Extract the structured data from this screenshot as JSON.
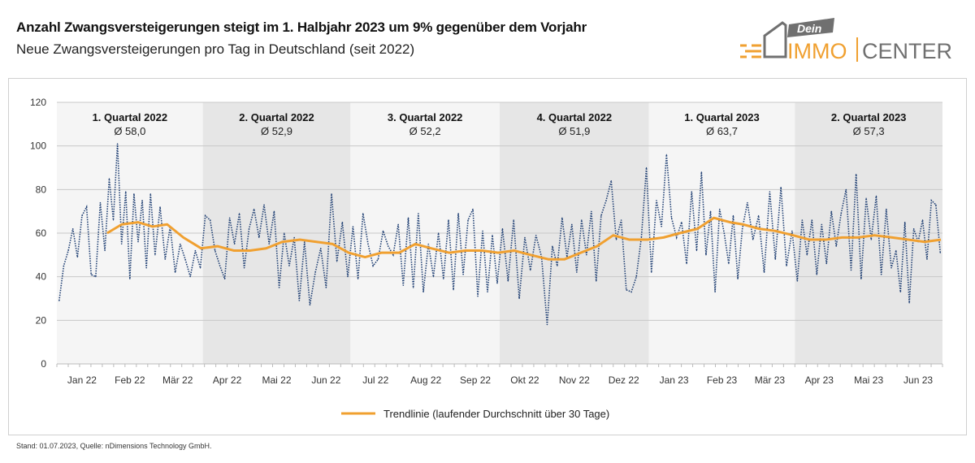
{
  "header": {
    "title": "Anzahl Zwangsversteigerungen steigt im 1. Halbjahr 2023 um 9% gegenüber dem Vorjahr",
    "subtitle": "Neue Zwangsversteigerungen pro Tag in Deutschland (seit 2022)"
  },
  "logo": {
    "tag": "Dein",
    "brand_a": "IMMO",
    "brand_b": "CENTER",
    "colors": {
      "orange": "#f0a030",
      "gray": "#707070"
    }
  },
  "footer": "Stand: 01.07.2023, Quelle: nDimensions Technology GmbH.",
  "chart_data": {
    "type": "line",
    "title": "",
    "xlabel": "",
    "ylabel": "",
    "ylim": [
      0,
      120
    ],
    "yticks": [
      0,
      20,
      40,
      60,
      80,
      100,
      120
    ],
    "grid": true,
    "x_range": [
      "2022-01-01",
      "2023-06-30"
    ],
    "month_labels": [
      {
        "month": "2022-01",
        "label": "Jan 22"
      },
      {
        "month": "2022-02",
        "label": "Feb 22"
      },
      {
        "month": "2022-03",
        "label": "Mär 22"
      },
      {
        "month": "2022-04",
        "label": "Apr 22"
      },
      {
        "month": "2022-05",
        "label": "Mai 22"
      },
      {
        "month": "2022-06",
        "label": "Jun 22"
      },
      {
        "month": "2022-07",
        "label": "Jul 22"
      },
      {
        "month": "2022-08",
        "label": "Aug 22"
      },
      {
        "month": "2022-09",
        "label": "Sep 22"
      },
      {
        "month": "2022-10",
        "label": "Okt 22"
      },
      {
        "month": "2022-11",
        "label": "Nov 22"
      },
      {
        "month": "2022-12",
        "label": "Dez 22"
      },
      {
        "month": "2023-01",
        "label": "Jan 23"
      },
      {
        "month": "2023-02",
        "label": "Feb 23"
      },
      {
        "month": "2023-03",
        "label": "Mär 23"
      },
      {
        "month": "2023-04",
        "label": "Apr 23"
      },
      {
        "month": "2023-05",
        "label": "Mai 23"
      },
      {
        "month": "2023-06",
        "label": "Jun 23"
      }
    ],
    "quarters": [
      {
        "label": "1. Quartal 2022",
        "avg": "Ø 58,0",
        "start": "2022-01-01",
        "end": "2022-03-31",
        "shade": "light"
      },
      {
        "label": "2. Quartal 2022",
        "avg": "Ø 52,9",
        "start": "2022-04-01",
        "end": "2022-06-30",
        "shade": "dark"
      },
      {
        "label": "3. Quartal 2022",
        "avg": "Ø 52,2",
        "start": "2022-07-01",
        "end": "2022-09-30",
        "shade": "light"
      },
      {
        "label": "4. Quartal 2022",
        "avg": "Ø 51,9",
        "start": "2022-10-01",
        "end": "2022-12-31",
        "shade": "dark"
      },
      {
        "label": "1. Quartal 2023",
        "avg": "Ø 63,7",
        "start": "2023-01-01",
        "end": "2023-03-31",
        "shade": "light"
      },
      {
        "label": "2. Quartal 2023",
        "avg": "Ø 57,3",
        "start": "2023-04-01",
        "end": "2023-06-30",
        "shade": "dark"
      }
    ],
    "colors": {
      "daily": "#1f3f73",
      "trend": "#f0a030",
      "band_light": "#f5f5f5",
      "band_dark": "#e6e6e6",
      "grid": "#c8c8c8"
    },
    "series": [
      {
        "style": "dotted",
        "daily_by_month": [
          {
            "month": "2022-01",
            "values": [
              29,
              45,
              52,
              62,
              49,
              68,
              72,
              41,
              40,
              74,
              52
            ]
          },
          {
            "month": "2022-02",
            "values": [
              85,
              66,
              101,
              55,
              79,
              39,
              78,
              56,
              75,
              44,
              78
            ]
          },
          {
            "month": "2022-03",
            "values": [
              50,
              72,
              48,
              63,
              42,
              55,
              48,
              40,
              52,
              44
            ]
          },
          {
            "month": "2022-04",
            "values": [
              68,
              66,
              52,
              45,
              39,
              67,
              55,
              69,
              44,
              62
            ]
          },
          {
            "month": "2022-05",
            "values": [
              71,
              58,
              73,
              55,
              70,
              35,
              60,
              45,
              58,
              29
            ]
          },
          {
            "month": "2022-06",
            "values": [
              56,
              27,
              42,
              53,
              35,
              78,
              47,
              65,
              40
            ]
          },
          {
            "month": "2022-07",
            "values": [
              63,
              39,
              69,
              55,
              45,
              48,
              61,
              54,
              50,
              64
            ]
          },
          {
            "month": "2022-08",
            "values": [
              36,
              67,
              35,
              69,
              33,
              55,
              40,
              60,
              39,
              66
            ]
          },
          {
            "month": "2022-09",
            "values": [
              34,
              69,
              41,
              66,
              71,
              31,
              61,
              33,
              59,
              37
            ]
          },
          {
            "month": "2022-10",
            "values": [
              62,
              38,
              66,
              30,
              58,
              43,
              59,
              49,
              18
            ]
          },
          {
            "month": "2022-11",
            "values": [
              54,
              45,
              67,
              49,
              64,
              42,
              66,
              50,
              70,
              38
            ]
          },
          {
            "month": "2022-12",
            "values": [
              68,
              75,
              84,
              57,
              66,
              34,
              33,
              40,
              58,
              90
            ]
          },
          {
            "month": "2023-01",
            "values": [
              42,
              75,
              63,
              96,
              67,
              58,
              65,
              46,
              79,
              52
            ]
          },
          {
            "month": "2023-02",
            "values": [
              88,
              50,
              70,
              33,
              71,
              60,
              46,
              68,
              39,
              62
            ]
          },
          {
            "month": "2023-03",
            "values": [
              74,
              57,
              68,
              42,
              79,
              48,
              81,
              45,
              61
            ]
          },
          {
            "month": "2023-04",
            "values": [
              38,
              66,
              50,
              66,
              41,
              64,
              46,
              70,
              54,
              69
            ]
          },
          {
            "month": "2023-05",
            "values": [
              80,
              43,
              87,
              39,
              76,
              57,
              77,
              41,
              71,
              44
            ]
          },
          {
            "month": "2023-06",
            "values": [
              52,
              33,
              65,
              28,
              62,
              56,
              66,
              48,
              75,
              73,
              51
            ]
          }
        ]
      },
      {
        "name": "Trendlinie (laufender Durchschnitt über 30 Tage)",
        "style": "solid",
        "points": [
          [
            "2022-02-01",
            60
          ],
          [
            "2022-02-10",
            64
          ],
          [
            "2022-02-20",
            65
          ],
          [
            "2022-03-01",
            63
          ],
          [
            "2022-03-10",
            64
          ],
          [
            "2022-03-20",
            58
          ],
          [
            "2022-03-31",
            53
          ],
          [
            "2022-04-10",
            54
          ],
          [
            "2022-04-20",
            52
          ],
          [
            "2022-04-30",
            52
          ],
          [
            "2022-05-10",
            53
          ],
          [
            "2022-05-20",
            56
          ],
          [
            "2022-05-31",
            57
          ],
          [
            "2022-06-10",
            56
          ],
          [
            "2022-06-20",
            55
          ],
          [
            "2022-06-30",
            51
          ],
          [
            "2022-07-10",
            49
          ],
          [
            "2022-07-20",
            51
          ],
          [
            "2022-07-31",
            51
          ],
          [
            "2022-08-10",
            55
          ],
          [
            "2022-08-20",
            53
          ],
          [
            "2022-08-31",
            51
          ],
          [
            "2022-09-10",
            52
          ],
          [
            "2022-09-20",
            52
          ],
          [
            "2022-09-30",
            51
          ],
          [
            "2022-10-10",
            52
          ],
          [
            "2022-10-20",
            50
          ],
          [
            "2022-10-31",
            48
          ],
          [
            "2022-11-10",
            48
          ],
          [
            "2022-11-20",
            51
          ],
          [
            "2022-11-30",
            54
          ],
          [
            "2022-12-10",
            59
          ],
          [
            "2022-12-20",
            57
          ],
          [
            "2022-12-31",
            57
          ],
          [
            "2023-01-10",
            58
          ],
          [
            "2023-01-20",
            60
          ],
          [
            "2023-01-31",
            62
          ],
          [
            "2023-02-10",
            67
          ],
          [
            "2023-02-20",
            65
          ],
          [
            "2023-02-28",
            64
          ],
          [
            "2023-03-10",
            62
          ],
          [
            "2023-03-20",
            61
          ],
          [
            "2023-03-31",
            59
          ],
          [
            "2023-04-10",
            57
          ],
          [
            "2023-04-20",
            57
          ],
          [
            "2023-04-30",
            58
          ],
          [
            "2023-05-10",
            58
          ],
          [
            "2023-05-20",
            59
          ],
          [
            "2023-05-31",
            58
          ],
          [
            "2023-06-10",
            57
          ],
          [
            "2023-06-20",
            56
          ],
          [
            "2023-06-30",
            57
          ]
        ]
      }
    ],
    "legend": {
      "placement": "bottom",
      "label": "Trendlinie (laufender Durchschnitt über 30 Tage)"
    }
  }
}
